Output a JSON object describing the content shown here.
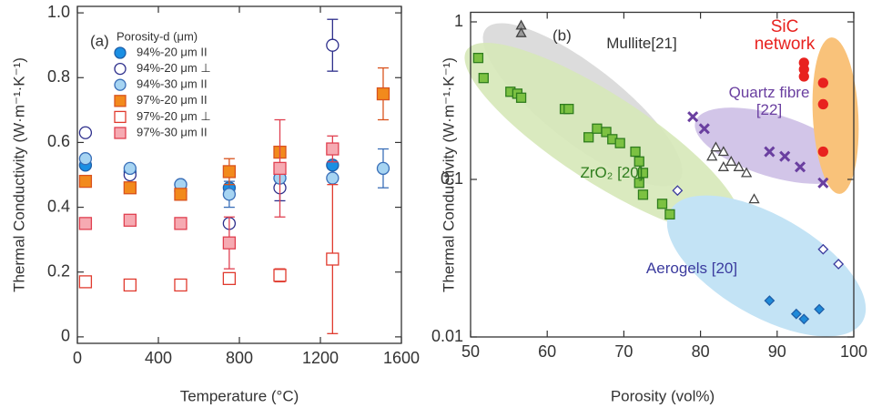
{
  "chart_data": [
    {
      "type": "scatter",
      "panel": "(a)",
      "xlabel": "Temperature (°C)",
      "ylabel": "Thermal Conductivity (W·m⁻¹·K⁻¹)",
      "xlim": [
        0,
        1600
      ],
      "xticks": [
        0,
        400,
        800,
        1200,
        1600
      ],
      "ylim": [
        -0.02,
        1.02
      ],
      "yticks": [
        0,
        0.2,
        0.4,
        0.6,
        0.8,
        {
          "value": 1,
          "label": "1.0"
        }
      ],
      "legend_title": "Porosity-d (μm)",
      "legend": "upper left",
      "series": [
        {
          "name": "94%-20 μm II",
          "marker": "circle",
          "filled": true,
          "color": "#1a8fe3",
          "edge": "#1f5fa8",
          "x": [
            40,
            260,
            510,
            750,
            1000,
            1260
          ],
          "values": [
            0.53,
            0.51,
            0.47,
            0.46,
            0.49,
            0.53
          ],
          "errors": [
            null,
            null,
            null,
            null,
            null,
            null
          ]
        },
        {
          "name": "94%-20 μm ⊥",
          "marker": "circle",
          "filled": false,
          "color": "#ffffff",
          "edge": "#2e2f8c",
          "x": [
            40,
            260,
            510,
            750,
            1000,
            1260
          ],
          "values": [
            0.63,
            0.5,
            0.45,
            0.35,
            0.46,
            0.9
          ],
          "errors": [
            null,
            null,
            null,
            null,
            0.04,
            0.08
          ]
        },
        {
          "name": "94%-30 μm II",
          "marker": "circle",
          "filled": true,
          "color": "#a6d4f2",
          "edge": "#3a6fb8",
          "x": [
            40,
            260,
            510,
            750,
            1000,
            1260,
            1510
          ],
          "values": [
            0.55,
            0.52,
            0.47,
            0.44,
            0.49,
            0.49,
            0.52
          ],
          "errors": [
            null,
            null,
            null,
            0.04,
            null,
            null,
            0.06
          ]
        },
        {
          "name": "97%-20 μm II",
          "marker": "square",
          "filled": true,
          "color": "#f28a1c",
          "edge": "#d9531e",
          "x": [
            40,
            260,
            510,
            750,
            1000,
            1510
          ],
          "values": [
            0.48,
            0.46,
            0.44,
            0.51,
            0.57,
            0.75
          ],
          "errors": [
            null,
            null,
            null,
            0.04,
            null,
            0.08
          ]
        },
        {
          "name": "97%-20 μm ⊥",
          "marker": "square",
          "filled": false,
          "color": "#ffffff",
          "edge": "#e03a2e",
          "x": [
            40,
            260,
            510,
            750,
            1000,
            1260
          ],
          "values": [
            0.17,
            0.16,
            0.16,
            0.18,
            0.19,
            0.24
          ],
          "errors": [
            null,
            null,
            null,
            null,
            0.02,
            0.23
          ]
        },
        {
          "name": "97%-30 μm II",
          "marker": "square",
          "filled": true,
          "color": "#f6aab2",
          "edge": "#e04050",
          "x": [
            40,
            260,
            510,
            750,
            1000,
            1260
          ],
          "values": [
            0.35,
            0.36,
            0.35,
            0.29,
            0.52,
            0.58
          ],
          "errors": [
            null,
            null,
            null,
            0.08,
            0.15,
            0.04
          ]
        }
      ]
    },
    {
      "type": "scatter",
      "panel": "(b)",
      "log_y": true,
      "xlabel": "Porosity (vol%)",
      "ylabel": "Thermal Conductivity (W·m⁻¹·K⁻¹)",
      "xlim": [
        50,
        100
      ],
      "xticks": [
        50,
        60,
        70,
        80,
        90,
        100
      ],
      "ylim": [
        0.01,
        1.15
      ],
      "yticks": [
        0.01,
        0.1,
        1
      ],
      "series": [
        {
          "name": "Mullite[21]",
          "marker": "triangle",
          "filled": false,
          "color": "#ffffff",
          "edge": "#444444",
          "label_color": "#333333",
          "x": [
            81.5,
            82,
            83,
            84,
            85,
            83,
            86,
            87
          ],
          "values": [
            0.14,
            0.16,
            0.15,
            0.13,
            0.12,
            0.12,
            0.11,
            0.075
          ]
        },
        {
          "marker": "triangle",
          "filled": true,
          "color": "#999999",
          "edge": "#444444",
          "x": [
            56.6,
            56.6
          ],
          "values": [
            0.95,
            0.85
          ]
        },
        {
          "name": "ZrO₂ [20]",
          "marker": "square",
          "filled": true,
          "color": "#7cc142",
          "edge": "#2f7d1e",
          "label_color": "#2f7d1e",
          "x": [
            51,
            51.7,
            55.2,
            56.1,
            56.6,
            62.3,
            62.8,
            65.4,
            66.5,
            67.7,
            68.5,
            69.5,
            71.5,
            72,
            72.5,
            72,
            72.5,
            75,
            76
          ],
          "values": [
            0.59,
            0.44,
            0.36,
            0.35,
            0.33,
            0.28,
            0.28,
            0.185,
            0.21,
            0.2,
            0.18,
            0.17,
            0.15,
            0.13,
            0.11,
            0.095,
            0.08,
            0.07,
            0.06
          ]
        },
        {
          "name": "Quartz fibre [22]",
          "marker": "x",
          "filled": true,
          "color": "#6a3fa0",
          "edge": "#6a3fa0",
          "label_color": "#6a3fa0",
          "x": [
            79,
            80.5,
            89,
            91,
            93,
            96
          ],
          "values": [
            0.25,
            0.21,
            0.15,
            0.14,
            0.12,
            0.095
          ]
        },
        {
          "name": "SiC network",
          "marker": "circle",
          "filled": true,
          "color": "#e8221f",
          "edge": "#e8221f",
          "label_color": "#e8221f",
          "x": [
            93.5,
            93.5,
            93.5,
            96,
            96,
            96
          ],
          "values": [
            0.55,
            0.5,
            0.45,
            0.41,
            0.3,
            0.15
          ]
        },
        {
          "name": "Aerogels [20]",
          "marker": "diamond",
          "filled": true,
          "color": "#1f8ad8",
          "edge": "#1f5fa8",
          "label_color": "#3b3b9e",
          "x": [
            89,
            92.5,
            93.5,
            95.5
          ],
          "values": [
            0.017,
            0.014,
            0.013,
            0.015
          ]
        },
        {
          "marker": "diamond",
          "filled": false,
          "color": "#ffffff",
          "edge": "#3b3b9e",
          "x": [
            77,
            96,
            98
          ],
          "values": [
            0.085,
            0.036,
            0.029
          ]
        }
      ]
    }
  ]
}
